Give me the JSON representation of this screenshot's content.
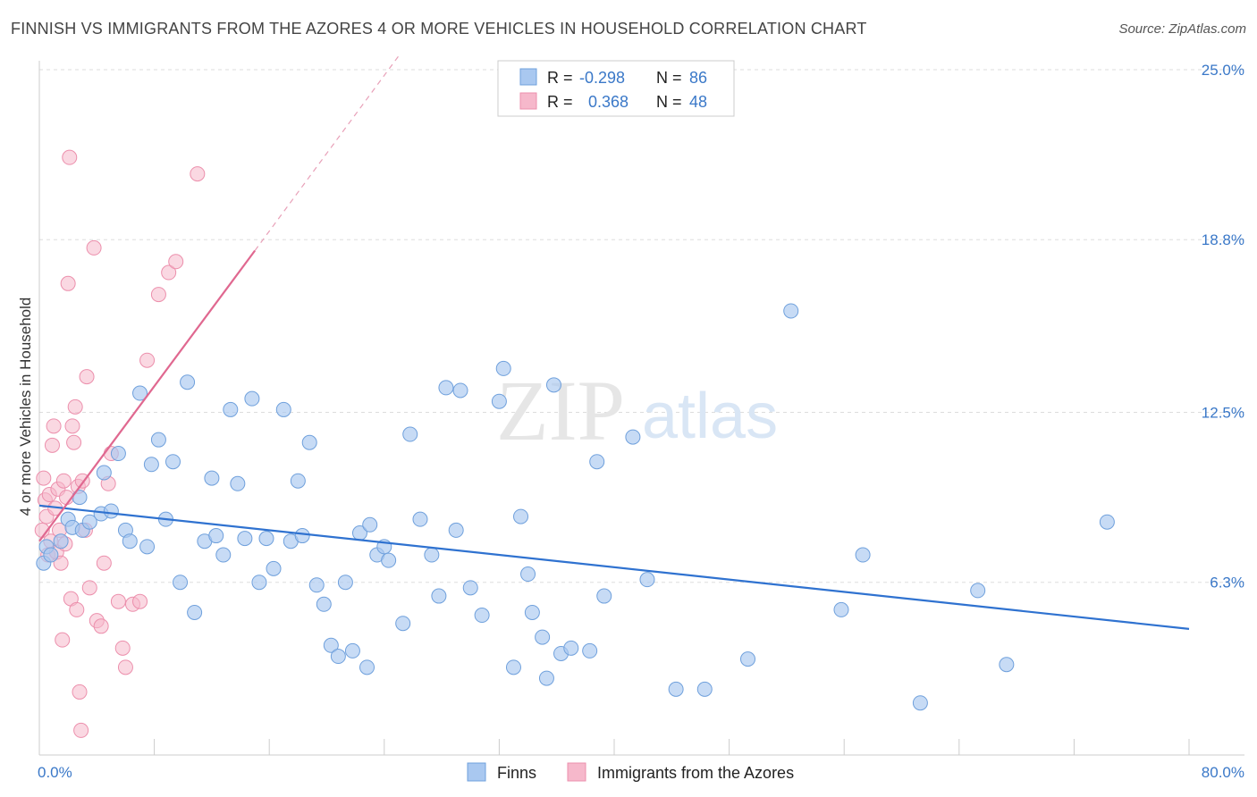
{
  "title": "FINNISH VS IMMIGRANTS FROM THE AZORES 4 OR MORE VEHICLES IN HOUSEHOLD CORRELATION CHART",
  "source": "Source: ZipAtlas.com",
  "watermark": {
    "zip": "ZIP",
    "atlas": "atlas"
  },
  "colors": {
    "finns_fill": "#a9c8f0",
    "finns_stroke": "#6fa0dc",
    "finns_line": "#2f72d0",
    "azores_fill": "#f6b8cb",
    "azores_stroke": "#ec8fac",
    "azores_line": "#e06890",
    "tick_label": "#3a78c8",
    "grid": "#dddddd"
  },
  "legend": {
    "rows": [
      {
        "r_label": "R =",
        "r_value": "-0.298",
        "n_label": "N =",
        "n_value": "86"
      },
      {
        "r_label": "R =",
        "r_value": "0.368",
        "n_label": "N =",
        "n_value": "48"
      }
    ]
  },
  "chart_data": {
    "type": "scatter",
    "title": "FINNISH VS IMMIGRANTS FROM THE AZORES 4 OR MORE VEHICLES IN HOUSEHOLD CORRELATION CHART",
    "xlabel": "",
    "ylabel": "4 or more Vehicles in Household",
    "xlim": [
      0,
      80
    ],
    "ylim": [
      0,
      25
    ],
    "x_tick_labels": [
      "0.0%",
      "80.0%"
    ],
    "y_ticks": [
      6.3,
      12.5,
      18.8,
      25.0
    ],
    "y_tick_labels": [
      "6.3%",
      "12.5%",
      "18.8%",
      "25.0%"
    ],
    "grid": true,
    "legend_position": "top-center",
    "series": [
      {
        "name": "Finns",
        "r": -0.298,
        "n": 86,
        "trend": {
          "x": [
            0,
            80
          ],
          "y": [
            9.1,
            4.6
          ]
        },
        "points": [
          [
            0.3,
            7.0
          ],
          [
            0.5,
            7.6
          ],
          [
            0.8,
            7.3
          ],
          [
            1.5,
            7.8
          ],
          [
            2.0,
            8.6
          ],
          [
            2.3,
            8.3
          ],
          [
            2.8,
            9.4
          ],
          [
            3.0,
            8.2
          ],
          [
            3.5,
            8.5
          ],
          [
            4.3,
            8.8
          ],
          [
            4.5,
            10.3
          ],
          [
            5.0,
            8.9
          ],
          [
            5.5,
            11.0
          ],
          [
            6.0,
            8.2
          ],
          [
            6.3,
            7.8
          ],
          [
            7.0,
            13.2
          ],
          [
            7.5,
            7.6
          ],
          [
            7.8,
            10.6
          ],
          [
            8.3,
            11.5
          ],
          [
            8.8,
            8.6
          ],
          [
            9.3,
            10.7
          ],
          [
            9.8,
            6.3
          ],
          [
            10.3,
            13.6
          ],
          [
            10.8,
            5.2
          ],
          [
            11.5,
            7.8
          ],
          [
            12.0,
            10.1
          ],
          [
            12.3,
            8.0
          ],
          [
            12.8,
            7.3
          ],
          [
            13.3,
            12.6
          ],
          [
            13.8,
            9.9
          ],
          [
            14.3,
            7.9
          ],
          [
            14.8,
            13.0
          ],
          [
            15.3,
            6.3
          ],
          [
            15.8,
            7.9
          ],
          [
            16.3,
            6.8
          ],
          [
            17.0,
            12.6
          ],
          [
            17.5,
            7.8
          ],
          [
            18.0,
            10.0
          ],
          [
            18.3,
            8.0
          ],
          [
            18.8,
            11.4
          ],
          [
            19.3,
            6.2
          ],
          [
            19.8,
            5.5
          ],
          [
            20.3,
            4.0
          ],
          [
            20.8,
            3.6
          ],
          [
            21.3,
            6.3
          ],
          [
            21.8,
            3.8
          ],
          [
            22.3,
            8.1
          ],
          [
            22.8,
            3.2
          ],
          [
            23.0,
            8.4
          ],
          [
            23.5,
            7.3
          ],
          [
            24.0,
            7.6
          ],
          [
            24.3,
            7.1
          ],
          [
            25.3,
            4.8
          ],
          [
            25.8,
            11.7
          ],
          [
            26.5,
            8.6
          ],
          [
            27.3,
            7.3
          ],
          [
            27.8,
            5.8
          ],
          [
            28.3,
            13.4
          ],
          [
            29.0,
            8.2
          ],
          [
            29.3,
            13.3
          ],
          [
            30.0,
            6.1
          ],
          [
            30.8,
            5.1
          ],
          [
            32.0,
            12.9
          ],
          [
            32.3,
            14.1
          ],
          [
            33.0,
            3.2
          ],
          [
            33.5,
            8.7
          ],
          [
            34.0,
            6.6
          ],
          [
            34.3,
            5.2
          ],
          [
            35.0,
            4.3
          ],
          [
            35.3,
            2.8
          ],
          [
            35.8,
            13.5
          ],
          [
            36.3,
            3.7
          ],
          [
            37.0,
            3.9
          ],
          [
            38.3,
            3.8
          ],
          [
            38.8,
            10.7
          ],
          [
            39.3,
            5.8
          ],
          [
            41.3,
            11.6
          ],
          [
            42.3,
            6.4
          ],
          [
            44.3,
            2.4
          ],
          [
            46.3,
            2.4
          ],
          [
            49.3,
            3.5
          ],
          [
            52.3,
            16.2
          ],
          [
            55.8,
            5.3
          ],
          [
            57.3,
            7.3
          ],
          [
            61.3,
            1.9
          ],
          [
            65.3,
            6.0
          ],
          [
            67.3,
            3.3
          ],
          [
            74.3,
            8.5
          ]
        ]
      },
      {
        "name": "Immigrants from the Azores",
        "r": 0.368,
        "n": 48,
        "trend": {
          "x": [
            0,
            15
          ],
          "y": [
            7.8,
            18.4
          ],
          "dashed_to": {
            "x": 25,
            "y": 25.5
          }
        },
        "points": [
          [
            0.2,
            8.2
          ],
          [
            0.3,
            10.1
          ],
          [
            0.4,
            9.3
          ],
          [
            0.5,
            8.7
          ],
          [
            0.6,
            7.3
          ],
          [
            0.7,
            9.5
          ],
          [
            0.8,
            7.8
          ],
          [
            0.9,
            11.3
          ],
          [
            1.0,
            12.0
          ],
          [
            1.1,
            9.0
          ],
          [
            1.2,
            7.4
          ],
          [
            1.3,
            9.7
          ],
          [
            1.4,
            8.2
          ],
          [
            1.5,
            7.0
          ],
          [
            1.6,
            4.2
          ],
          [
            1.7,
            10.0
          ],
          [
            1.8,
            7.7
          ],
          [
            1.9,
            9.4
          ],
          [
            2.0,
            17.2
          ],
          [
            2.1,
            21.8
          ],
          [
            2.2,
            5.7
          ],
          [
            2.3,
            12.0
          ],
          [
            2.4,
            11.4
          ],
          [
            2.5,
            12.7
          ],
          [
            2.6,
            5.3
          ],
          [
            2.7,
            9.8
          ],
          [
            2.8,
            2.3
          ],
          [
            2.9,
            0.9
          ],
          [
            3.0,
            10.0
          ],
          [
            3.2,
            8.2
          ],
          [
            3.3,
            13.8
          ],
          [
            3.5,
            6.1
          ],
          [
            3.8,
            18.5
          ],
          [
            4.0,
            4.9
          ],
          [
            4.3,
            4.7
          ],
          [
            4.5,
            7.0
          ],
          [
            4.8,
            9.9
          ],
          [
            5.0,
            11.0
          ],
          [
            5.5,
            5.6
          ],
          [
            5.8,
            3.9
          ],
          [
            6.0,
            3.2
          ],
          [
            6.5,
            5.5
          ],
          [
            7.0,
            5.6
          ],
          [
            7.5,
            14.4
          ],
          [
            8.3,
            16.8
          ],
          [
            9.0,
            17.6
          ],
          [
            9.5,
            18.0
          ],
          [
            11.0,
            21.2
          ]
        ]
      }
    ]
  }
}
